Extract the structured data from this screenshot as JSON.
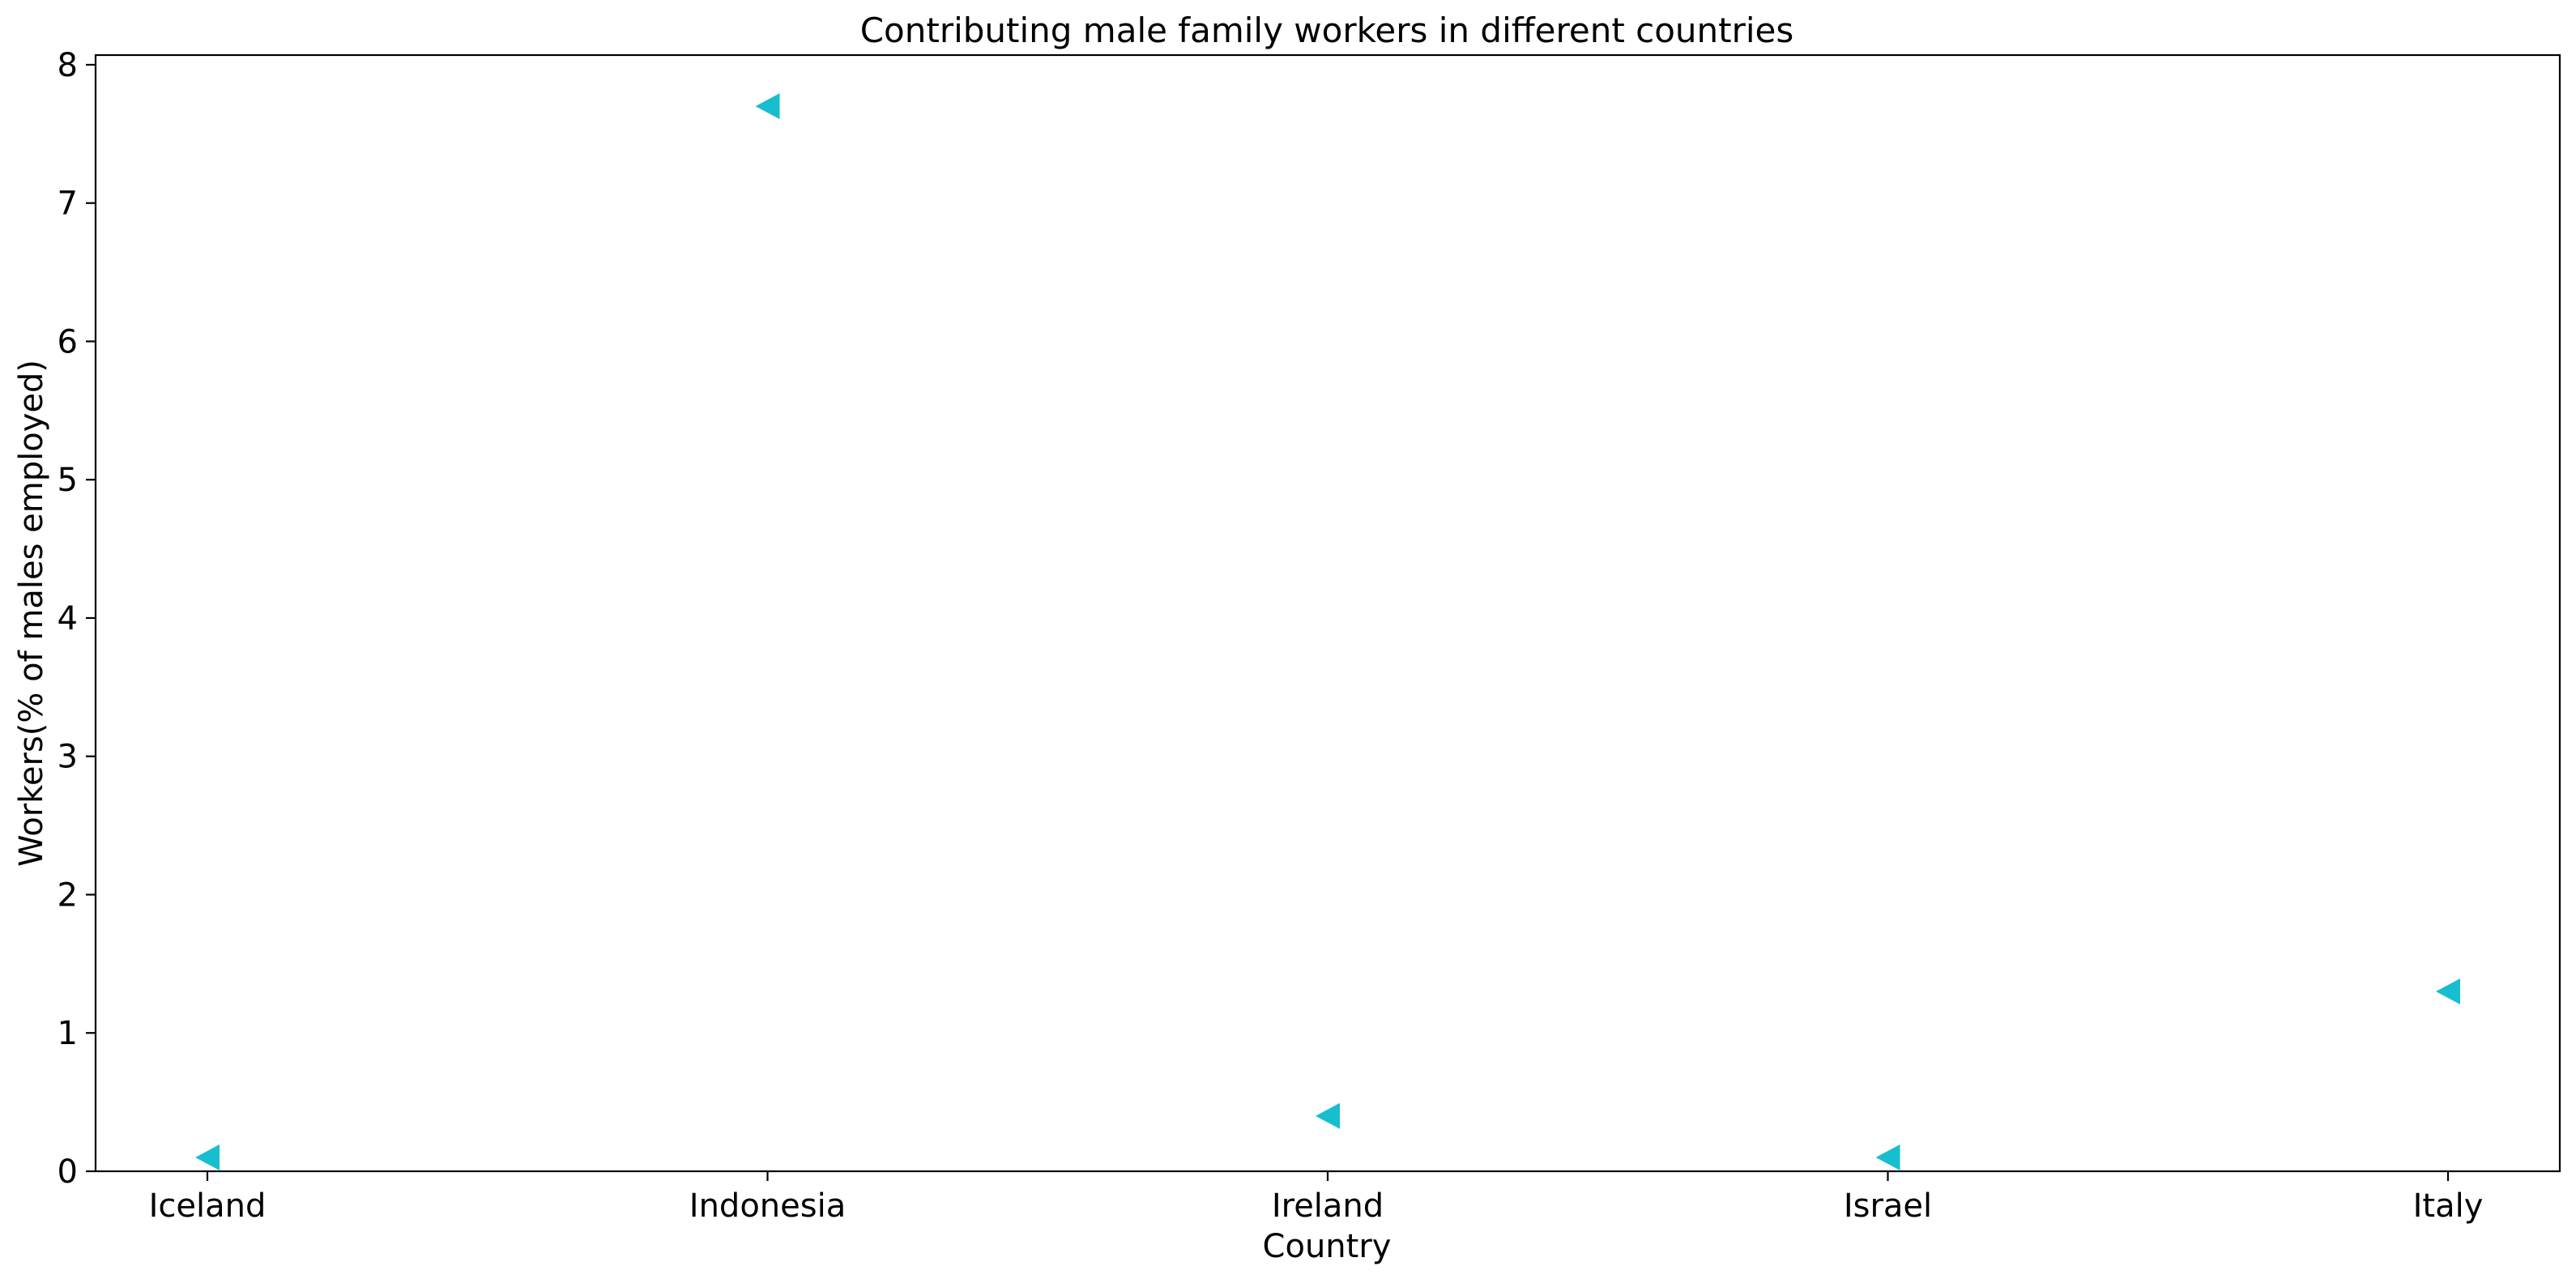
{
  "chart_data": {
    "type": "scatter",
    "title": "Contributing male family workers in different countries",
    "xlabel": "Country",
    "ylabel": "Workers(% of males employed)",
    "categories": [
      "Iceland",
      "Indonesia",
      "Ireland",
      "Israel",
      "Italy"
    ],
    "series": [
      {
        "values": [
          0.1,
          7.7,
          0.4,
          0.1,
          1.3
        ],
        "color": "#17becf",
        "marker": "triangle-left"
      }
    ],
    "ylim": [
      0,
      8.07
    ],
    "yticks": [
      0,
      1,
      2,
      3,
      4,
      5,
      6,
      7,
      8
    ],
    "grid": false,
    "legend": "none"
  }
}
